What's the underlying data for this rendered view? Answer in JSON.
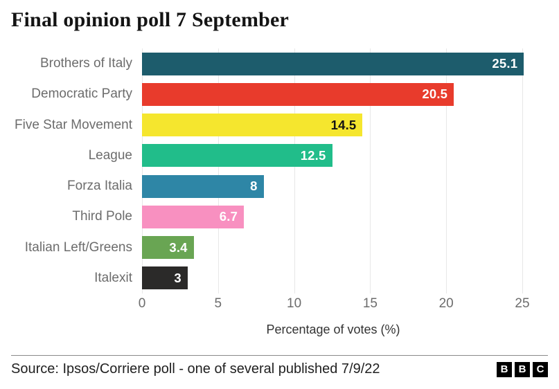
{
  "title": "Final opinion poll 7 September",
  "chart_data": {
    "type": "bar",
    "orientation": "horizontal",
    "title": "Final opinion poll 7 September",
    "categories": [
      "Brothers of Italy",
      "Democratic Party",
      "Five Star Movement",
      "League",
      "Forza Italia",
      "Third Pole",
      "Italian Left/Greens",
      "Italexit"
    ],
    "values": [
      25.1,
      20.5,
      14.5,
      12.5,
      8,
      6.7,
      3.4,
      3
    ],
    "value_labels": [
      "25.1",
      "20.5",
      "14.5",
      "12.5",
      "8",
      "6.7",
      "3.4",
      "3"
    ],
    "bar_colors": [
      "#1d5c6c",
      "#e83b2c",
      "#f5e62e",
      "#21bd8a",
      "#2e86a6",
      "#f890c0",
      "#69a553",
      "#2b2a29"
    ],
    "value_label_colors": [
      "#ffffff",
      "#ffffff",
      "#141414",
      "#ffffff",
      "#ffffff",
      "#ffffff",
      "#ffffff",
      "#ffffff"
    ],
    "xlabel": "Percentage of votes (%)",
    "x_ticks": [
      "0",
      "5",
      "10",
      "15",
      "20",
      "25"
    ],
    "x_tick_values": [
      0,
      5,
      10,
      15,
      20,
      25
    ],
    "xlim": [
      0,
      25.3
    ],
    "grid": "vertical",
    "gridline_color": "#e7e7e7",
    "legend": false
  },
  "footer": {
    "source": "Source: Ipsos/Corriere poll - one of several published 7/9/22",
    "logo_letters": [
      "B",
      "B",
      "C"
    ]
  }
}
